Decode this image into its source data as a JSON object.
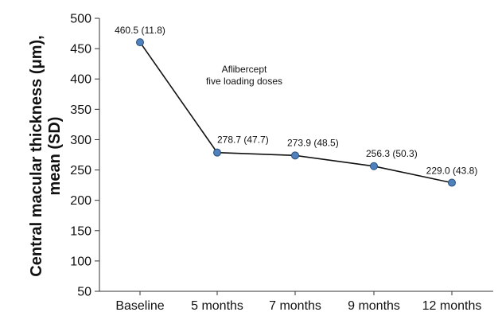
{
  "chart_data": {
    "type": "line",
    "categories": [
      "Baseline",
      "5 months",
      "7 months",
      "9 months",
      "12 months"
    ],
    "series": [
      {
        "values": [
          460.5,
          278.7,
          273.9,
          256.3,
          229.0
        ],
        "data_labels": [
          "460.5 (11.8)",
          "278.7 (47.7)",
          "273.9 (48.5)",
          "256.3 (50.3)",
          "229.0 (43.8)"
        ]
      }
    ],
    "ylabel_lines": [
      "Central macular thickness (μm),",
      "mean (SD)"
    ],
    "annotation_lines": [
      "Aflibercept",
      "five loading doses"
    ],
    "ylim": [
      50,
      500
    ],
    "yticks": [
      50,
      100,
      150,
      200,
      250,
      300,
      350,
      400,
      450,
      500
    ],
    "grid": false,
    "line_color": "#111111",
    "marker_color": "#4f81bd",
    "marker_edge": "#2a4f7a"
  }
}
